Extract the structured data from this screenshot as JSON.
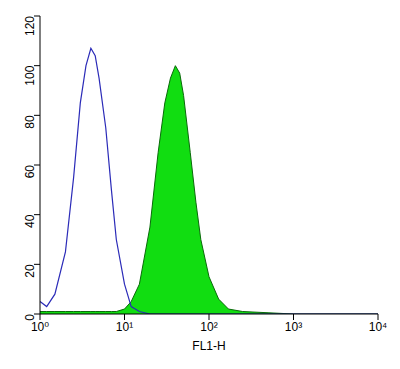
{
  "chart_data": {
    "type": "line",
    "x_label": "FL1-H",
    "log": "x",
    "x": [
      1,
      1.2,
      1.5,
      2,
      2.5,
      3,
      3.5,
      4,
      4.5,
      5,
      6,
      7,
      8,
      10,
      12,
      15,
      20,
      25,
      30,
      35,
      40,
      45,
      50,
      60,
      70,
      80,
      100,
      130,
      170,
      250,
      500,
      1000,
      10000
    ],
    "series": [
      {
        "type": "line",
        "color": "#2b2bb8",
        "values": [
          5,
          3,
          8,
          25,
          55,
          85,
          100,
          107,
          104,
          95,
          75,
          50,
          30,
          12,
          3,
          1,
          0,
          0,
          0,
          0,
          0,
          0,
          0,
          0,
          0,
          0,
          0,
          0,
          0,
          0,
          0,
          0,
          0
        ]
      },
      {
        "type": "area",
        "color": "#11dd11",
        "values": [
          1,
          1,
          1,
          1,
          1,
          1,
          1,
          1,
          1,
          1,
          1,
          1,
          1,
          2,
          5,
          12,
          35,
          65,
          85,
          95,
          100,
          97,
          88,
          65,
          45,
          30,
          15,
          6,
          2,
          1,
          0.5,
          0,
          0
        ]
      }
    ],
    "xlim": [
      1,
      10000
    ],
    "xticks": [
      {
        "value": 1,
        "label": "10⁰"
      },
      {
        "value": 10,
        "label": "10¹"
      },
      {
        "value": 100,
        "label": "10²"
      },
      {
        "value": 1000,
        "label": "10³"
      },
      {
        "value": 10000,
        "label": "10⁴"
      }
    ],
    "ylim": [
      0,
      120
    ],
    "yticks": [
      0,
      20,
      40,
      60,
      80,
      100,
      120
    ],
    "grid": false
  }
}
